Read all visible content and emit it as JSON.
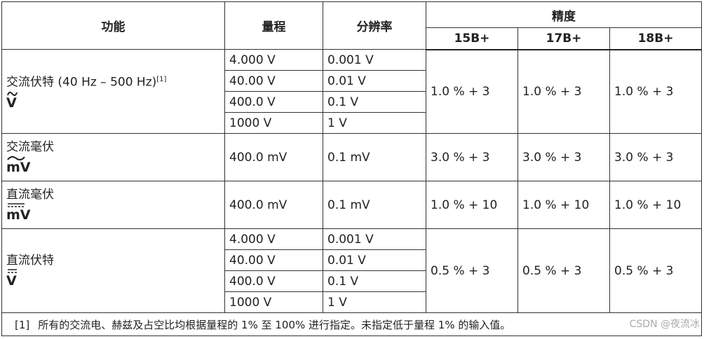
{
  "table": {
    "header": {
      "function": "功能",
      "range": "量程",
      "resolution": "分辨率",
      "accuracy": "精度",
      "models": [
        "15B+",
        "17B+",
        "18B+"
      ]
    },
    "groups": [
      {
        "function": "交流伏特 (40 Hz – 500 Hz)",
        "note_ref": "[1]",
        "symbol": "V",
        "symbol_style": "ac",
        "rows": [
          [
            "4.000 V",
            "0.001 V"
          ],
          [
            "40.00 V",
            "0.01 V"
          ],
          [
            "400.0 V",
            "0.1 V"
          ],
          [
            "1000 V",
            "1 V"
          ]
        ],
        "accuracy": [
          "1.0 % + 3",
          "1.0 % + 3",
          "1.0 % + 3"
        ]
      },
      {
        "function": "交流毫伏",
        "symbol": "mV",
        "symbol_style": "ac",
        "rows": [
          [
            "400.0 mV",
            "0.1 mV"
          ]
        ],
        "accuracy": [
          "3.0 % + 3",
          "3.0 % + 3",
          "3.0 % + 3"
        ]
      },
      {
        "function": "直流毫伏",
        "symbol": "mV",
        "symbol_style": "dc",
        "rows": [
          [
            "400.0 mV",
            "0.1 mV"
          ]
        ],
        "accuracy": [
          "1.0 % + 10",
          "1.0 % + 10",
          "1.0 % + 10"
        ]
      },
      {
        "function": "直流伏特",
        "symbol": "V",
        "symbol_style": "dc",
        "rows": [
          [
            "4.000 V",
            "0.001 V"
          ],
          [
            "40.00 V",
            "0.01 V"
          ],
          [
            "400.0 V",
            "0.1 V"
          ],
          [
            "1000 V",
            "1 V"
          ]
        ],
        "accuracy": [
          "0.5 % + 3",
          "0.5 % + 3",
          "0.5 % + 3"
        ]
      }
    ],
    "footnote": {
      "marker": "[1]",
      "text": "所有的交流电、赫兹及占空比均根据量程的 1% 至 100% 进行指定。未指定低于量程 1% 的输入值。"
    }
  },
  "watermark": "CSDN @夜流冰"
}
